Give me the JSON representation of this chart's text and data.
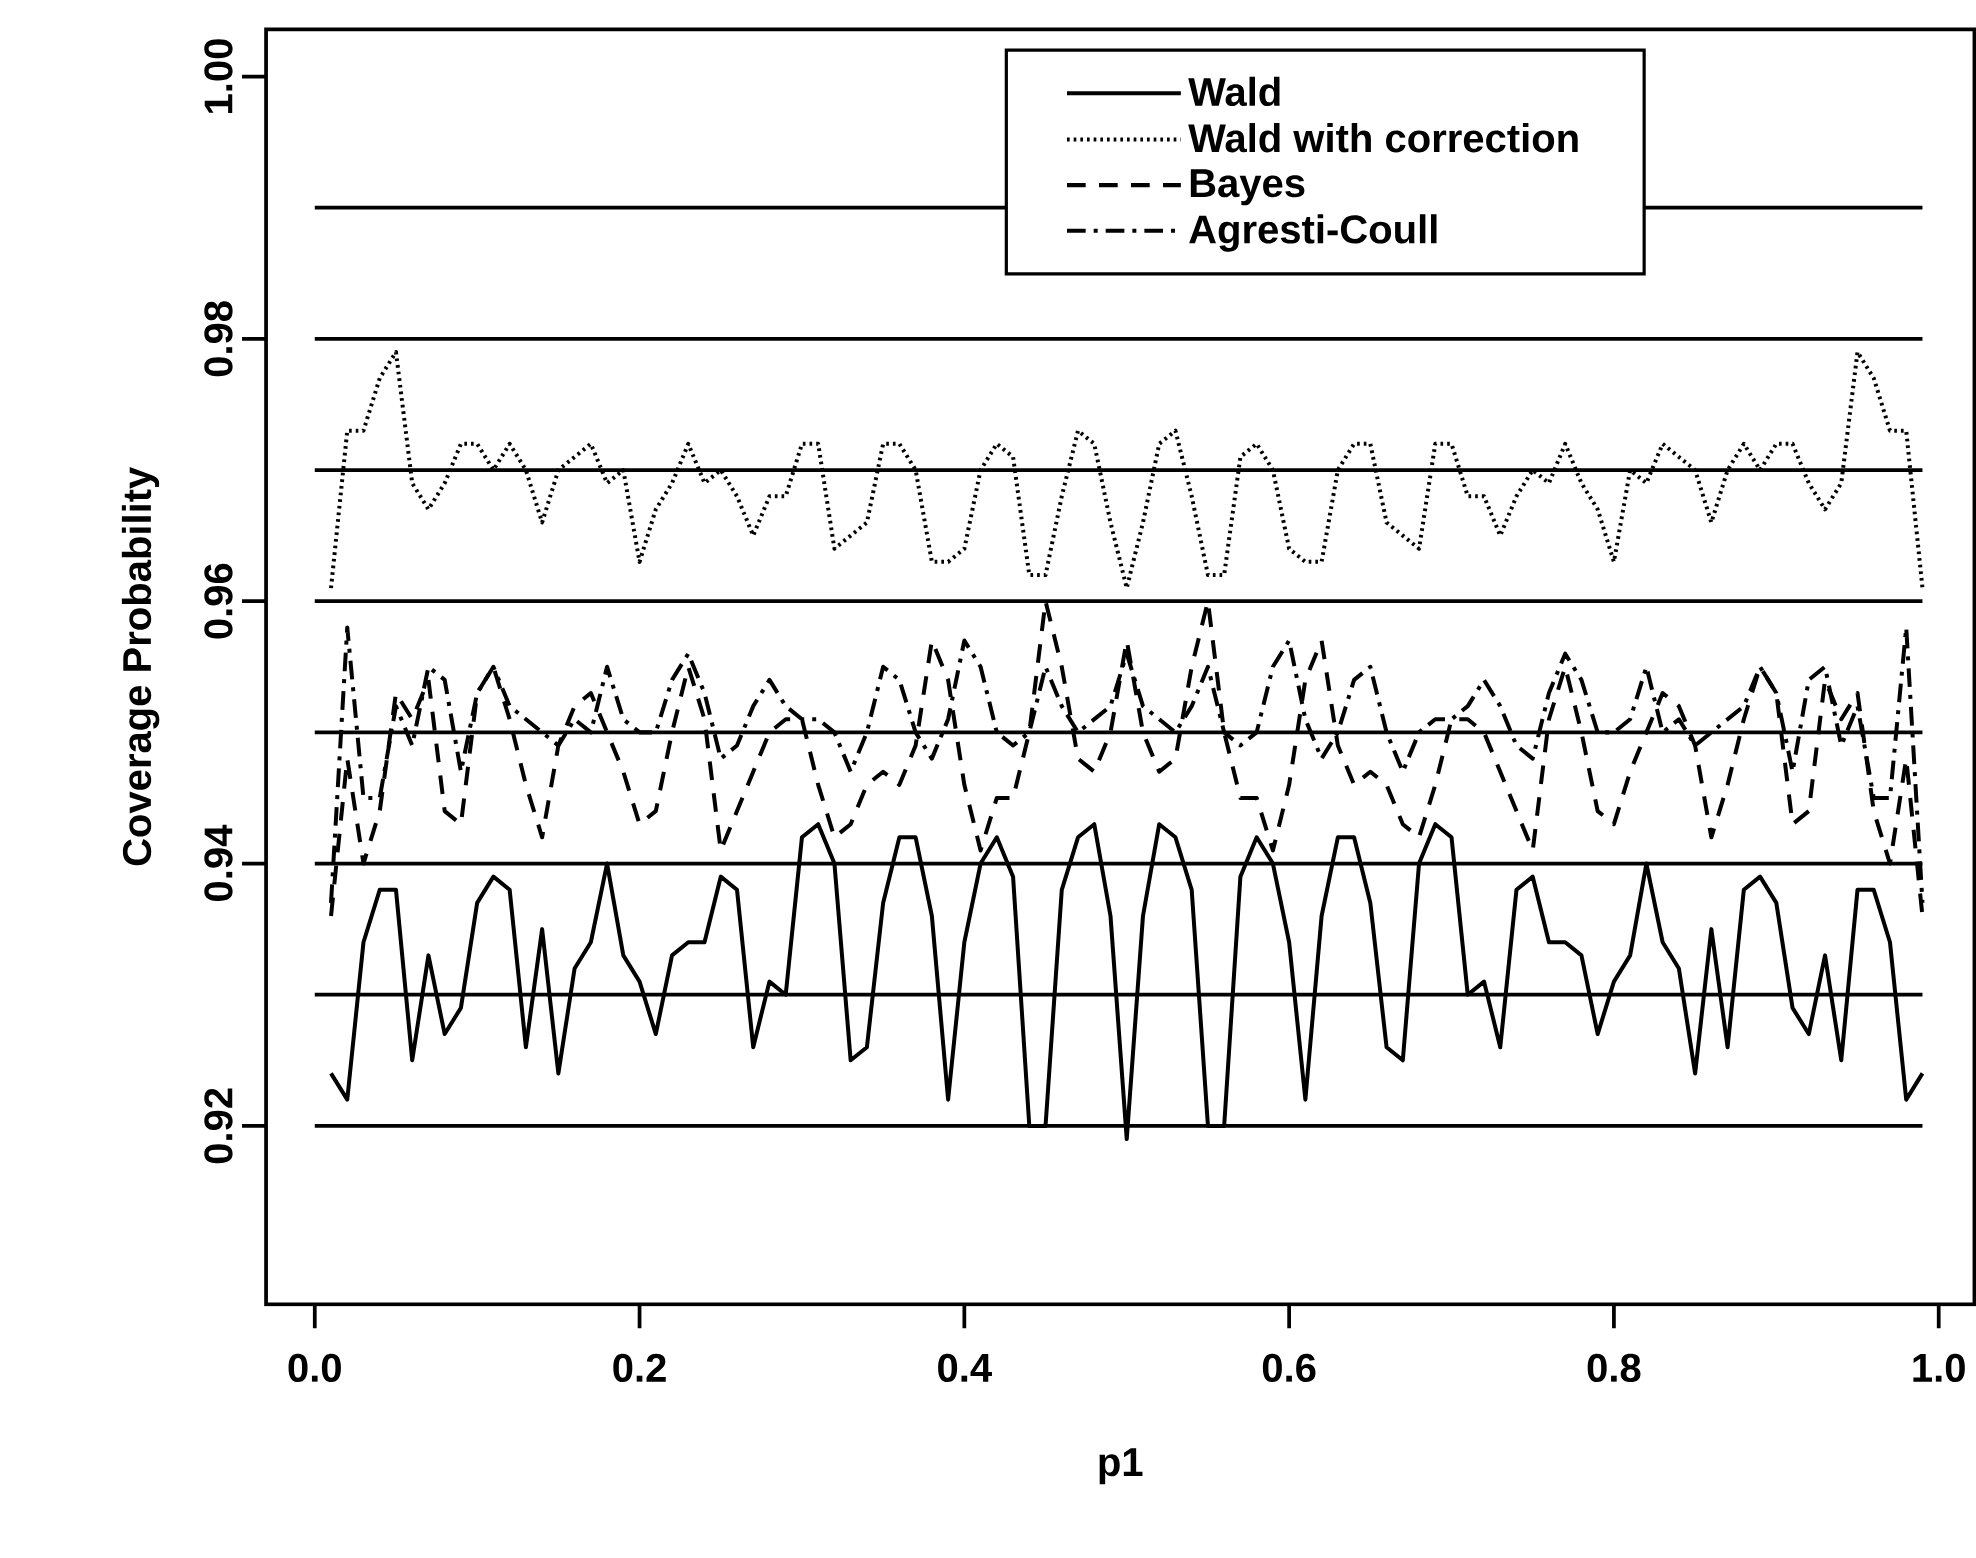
{
  "chart_data": {
    "type": "line",
    "xlabel": "p1",
    "ylabel": "Coverage Probability",
    "xlim": [
      -0.03,
      1.022
    ],
    "ylim": [
      0.9064,
      1.0036
    ],
    "xticks": [
      {
        "value": 0,
        "label": "0.0"
      },
      0.2,
      0.4,
      0.6,
      0.8,
      {
        "value": 1,
        "label": "1.0"
      }
    ],
    "yticks": [
      0.92,
      0.94,
      0.96,
      0.98,
      {
        "value": 1,
        "label": "1.00"
      }
    ],
    "legend": "top",
    "grid": false,
    "x": [
      0.01,
      0.02,
      0.03,
      0.04,
      0.05,
      0.06,
      0.07,
      0.08,
      0.09,
      0.1,
      0.11,
      0.12,
      0.13,
      0.14,
      0.15,
      0.16,
      0.17,
      0.18,
      0.19,
      0.2,
      0.21,
      0.22,
      0.23,
      0.24,
      0.25,
      0.26,
      0.27,
      0.28,
      0.29,
      0.3,
      0.31,
      0.32,
      0.33,
      0.34,
      0.35,
      0.36,
      0.37,
      0.38,
      0.39,
      0.4,
      0.41,
      0.42,
      0.43,
      0.44,
      0.45,
      0.46,
      0.47,
      0.48,
      0.49,
      0.5,
      0.51,
      0.52,
      0.53,
      0.54,
      0.55,
      0.56,
      0.57,
      0.58,
      0.59,
      0.6,
      0.61,
      0.62,
      0.63,
      0.64,
      0.65,
      0.66,
      0.67,
      0.68,
      0.69,
      0.7,
      0.71,
      0.72,
      0.73,
      0.74,
      0.75,
      0.76,
      0.77,
      0.78,
      0.79,
      0.8,
      0.81,
      0.82,
      0.83,
      0.84,
      0.85,
      0.86,
      0.87,
      0.88,
      0.89,
      0.9,
      0.91,
      0.92,
      0.93,
      0.94,
      0.95,
      0.96,
      0.97,
      0.98,
      0.99
    ],
    "series": [
      {
        "name": "Wald",
        "color": "#000000",
        "line_style": "solid",
        "values": [
          0.924,
          0.922,
          0.934,
          0.938,
          0.938,
          0.925,
          0.933,
          0.927,
          0.929,
          0.937,
          0.939,
          0.938,
          0.926,
          0.935,
          0.924,
          0.932,
          0.934,
          0.94,
          0.933,
          0.931,
          0.927,
          0.933,
          0.934,
          0.934,
          0.939,
          0.938,
          0.926,
          0.931,
          0.93,
          0.942,
          0.943,
          0.94,
          0.925,
          0.926,
          0.937,
          0.942,
          0.942,
          0.936,
          0.922,
          0.934,
          0.94,
          0.942,
          0.939,
          0.92,
          0.92,
          0.938,
          0.942,
          0.943,
          0.936,
          0.919,
          0.936,
          0.943,
          0.942,
          0.938,
          0.92,
          0.92,
          0.939,
          0.942,
          0.94,
          0.934,
          0.922,
          0.936,
          0.942,
          0.942,
          0.937,
          0.926,
          0.925,
          0.94,
          0.943,
          0.942,
          0.93,
          0.931,
          0.926,
          0.938,
          0.939,
          0.934,
          0.934,
          0.933,
          0.927,
          0.931,
          0.933,
          0.94,
          0.934,
          0.932,
          0.924,
          0.935,
          0.926,
          0.938,
          0.939,
          0.937,
          0.929,
          0.927,
          0.933,
          0.925,
          0.938,
          0.938,
          0.934,
          0.922,
          0.924
        ]
      },
      {
        "name": "Wald with correction",
        "color": "#000000",
        "line_style": "dotted",
        "values": [
          0.961,
          0.973,
          0.973,
          0.977,
          0.979,
          0.969,
          0.967,
          0.969,
          0.972,
          0.972,
          0.97,
          0.972,
          0.97,
          0.966,
          0.97,
          0.971,
          0.972,
          0.969,
          0.97,
          0.963,
          0.967,
          0.969,
          0.972,
          0.969,
          0.97,
          0.968,
          0.965,
          0.968,
          0.968,
          0.972,
          0.972,
          0.964,
          0.965,
          0.966,
          0.972,
          0.972,
          0.97,
          0.963,
          0.963,
          0.964,
          0.97,
          0.972,
          0.971,
          0.962,
          0.962,
          0.968,
          0.973,
          0.972,
          0.966,
          0.961,
          0.966,
          0.972,
          0.973,
          0.968,
          0.962,
          0.962,
          0.971,
          0.972,
          0.97,
          0.964,
          0.963,
          0.963,
          0.97,
          0.972,
          0.972,
          0.966,
          0.965,
          0.964,
          0.972,
          0.972,
          0.968,
          0.968,
          0.965,
          0.968,
          0.97,
          0.969,
          0.972,
          0.969,
          0.967,
          0.963,
          0.97,
          0.969,
          0.972,
          0.971,
          0.97,
          0.966,
          0.97,
          0.972,
          0.97,
          0.972,
          0.972,
          0.969,
          0.967,
          0.969,
          0.979,
          0.977,
          0.973,
          0.973,
          0.961
        ]
      },
      {
        "name": "Bayes",
        "color": "#000000",
        "line_style": "dashed",
        "values": [
          0.936,
          0.948,
          0.94,
          0.944,
          0.953,
          0.951,
          0.954,
          0.944,
          0.943,
          0.953,
          0.955,
          0.951,
          0.946,
          0.942,
          0.949,
          0.952,
          0.953,
          0.95,
          0.947,
          0.943,
          0.944,
          0.95,
          0.955,
          0.951,
          0.941,
          0.944,
          0.947,
          0.95,
          0.951,
          0.951,
          0.946,
          0.942,
          0.943,
          0.946,
          0.947,
          0.946,
          0.949,
          0.957,
          0.954,
          0.946,
          0.941,
          0.945,
          0.945,
          0.95,
          0.96,
          0.955,
          0.948,
          0.947,
          0.95,
          0.957,
          0.95,
          0.947,
          0.948,
          0.955,
          0.96,
          0.95,
          0.945,
          0.945,
          0.941,
          0.946,
          0.954,
          0.957,
          0.949,
          0.946,
          0.947,
          0.946,
          0.943,
          0.942,
          0.946,
          0.951,
          0.951,
          0.95,
          0.947,
          0.944,
          0.941,
          0.951,
          0.955,
          0.95,
          0.944,
          0.943,
          0.947,
          0.95,
          0.953,
          0.952,
          0.949,
          0.942,
          0.946,
          0.951,
          0.955,
          0.953,
          0.943,
          0.944,
          0.954,
          0.951,
          0.953,
          0.944,
          0.94,
          0.948,
          0.936
        ]
      },
      {
        "name": "Agresti-Coull",
        "color": "#000000",
        "line_style": "dashdot",
        "values": [
          0.937,
          0.958,
          0.945,
          0.945,
          0.952,
          0.949,
          0.955,
          0.954,
          0.947,
          0.953,
          0.955,
          0.952,
          0.951,
          0.95,
          0.949,
          0.951,
          0.95,
          0.955,
          0.951,
          0.95,
          0.95,
          0.954,
          0.956,
          0.953,
          0.948,
          0.949,
          0.952,
          0.954,
          0.952,
          0.951,
          0.951,
          0.95,
          0.947,
          0.95,
          0.955,
          0.954,
          0.95,
          0.948,
          0.951,
          0.957,
          0.955,
          0.95,
          0.949,
          0.95,
          0.955,
          0.952,
          0.95,
          0.951,
          0.952,
          0.956,
          0.952,
          0.951,
          0.95,
          0.952,
          0.955,
          0.95,
          0.949,
          0.95,
          0.955,
          0.957,
          0.951,
          0.948,
          0.95,
          0.954,
          0.955,
          0.95,
          0.947,
          0.95,
          0.951,
          0.951,
          0.952,
          0.954,
          0.952,
          0.949,
          0.948,
          0.953,
          0.956,
          0.954,
          0.95,
          0.95,
          0.951,
          0.955,
          0.95,
          0.951,
          0.949,
          0.95,
          0.951,
          0.952,
          0.955,
          0.953,
          0.947,
          0.954,
          0.955,
          0.949,
          0.952,
          0.945,
          0.945,
          0.958,
          0.937
        ]
      }
    ],
    "ref_lines": [
      {
        "axis": "y",
        "value": 0.92,
        "color": "#000000"
      },
      {
        "axis": "y",
        "value": 0.93,
        "color": "#000000"
      },
      {
        "axis": "y",
        "value": 0.94,
        "color": "#000000"
      },
      {
        "axis": "y",
        "value": 0.95,
        "color": "#000000"
      },
      {
        "axis": "y",
        "value": 0.96,
        "color": "#000000"
      },
      {
        "axis": "y",
        "value": 0.97,
        "color": "#000000"
      },
      {
        "axis": "y",
        "value": 0.98,
        "color": "#000000"
      },
      {
        "axis": "y",
        "value": 0.99,
        "color": "#000000"
      }
    ]
  }
}
